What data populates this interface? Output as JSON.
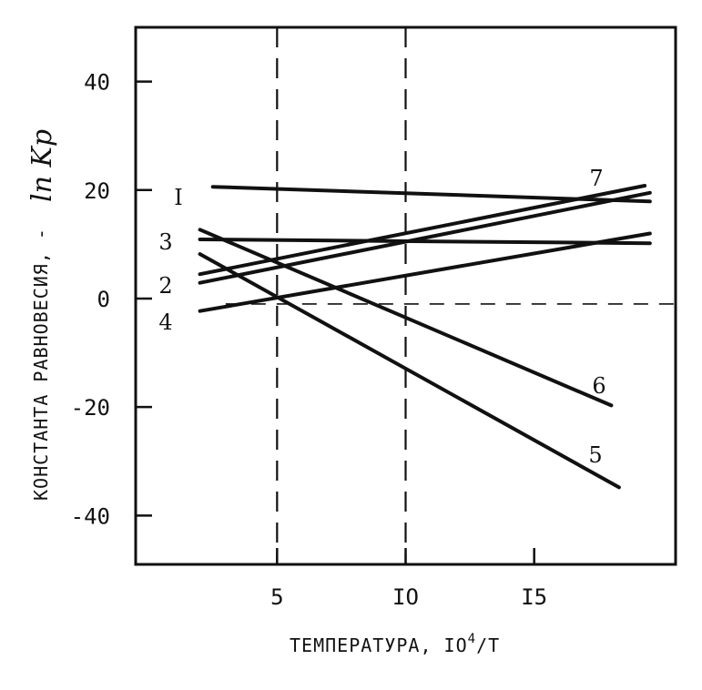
{
  "chart_data": {
    "type": "line",
    "xlabel": "ТЕМПЕРАТУРА, IO",
    "xlabel_sup": "4",
    "xlabel_tail": "/T",
    "ylabel_text": "КОНСТАНТА РАВНОВЕСИЯ, -",
    "ylabel_symbol": "ln Kp",
    "xlim": [
      -0.5,
      20.5
    ],
    "ylim": [
      -49,
      50
    ],
    "x_ticks": [
      {
        "value": 5,
        "label": "5"
      },
      {
        "value": 10,
        "label": "IO"
      },
      {
        "value": 15,
        "label": "I5"
      }
    ],
    "y_ticks": [
      {
        "value": 40,
        "label": "40"
      },
      {
        "value": 20,
        "label": "20"
      },
      {
        "value": 0,
        "label": "0"
      },
      {
        "value": -20,
        "label": "-20"
      },
      {
        "value": -40,
        "label": "-40"
      }
    ],
    "reference_lines": {
      "vertical_dashed": [
        5,
        10
      ],
      "horizontal_dashed": [
        -1
      ]
    },
    "series": [
      {
        "name": "I",
        "x": [
          2.5,
          19.5
        ],
        "y": [
          20.6,
          17.9
        ]
      },
      {
        "name": "2",
        "x": [
          2.0,
          19.5
        ],
        "y": [
          2.9,
          19.5
        ]
      },
      {
        "name": "3",
        "x": [
          2.0,
          19.5
        ],
        "y": [
          10.9,
          10.2
        ]
      },
      {
        "name": "4",
        "x": [
          2.0,
          19.5
        ],
        "y": [
          -2.3,
          12.0
        ]
      },
      {
        "name": "5",
        "x": [
          2.0,
          18.3
        ],
        "y": [
          8.2,
          -34.8
        ]
      },
      {
        "name": "6",
        "x": [
          2.0,
          18.0
        ],
        "y": [
          12.7,
          -19.7
        ]
      },
      {
        "name": "7",
        "x": [
          2.0,
          19.3
        ],
        "y": [
          4.5,
          20.8
        ]
      }
    ]
  }
}
